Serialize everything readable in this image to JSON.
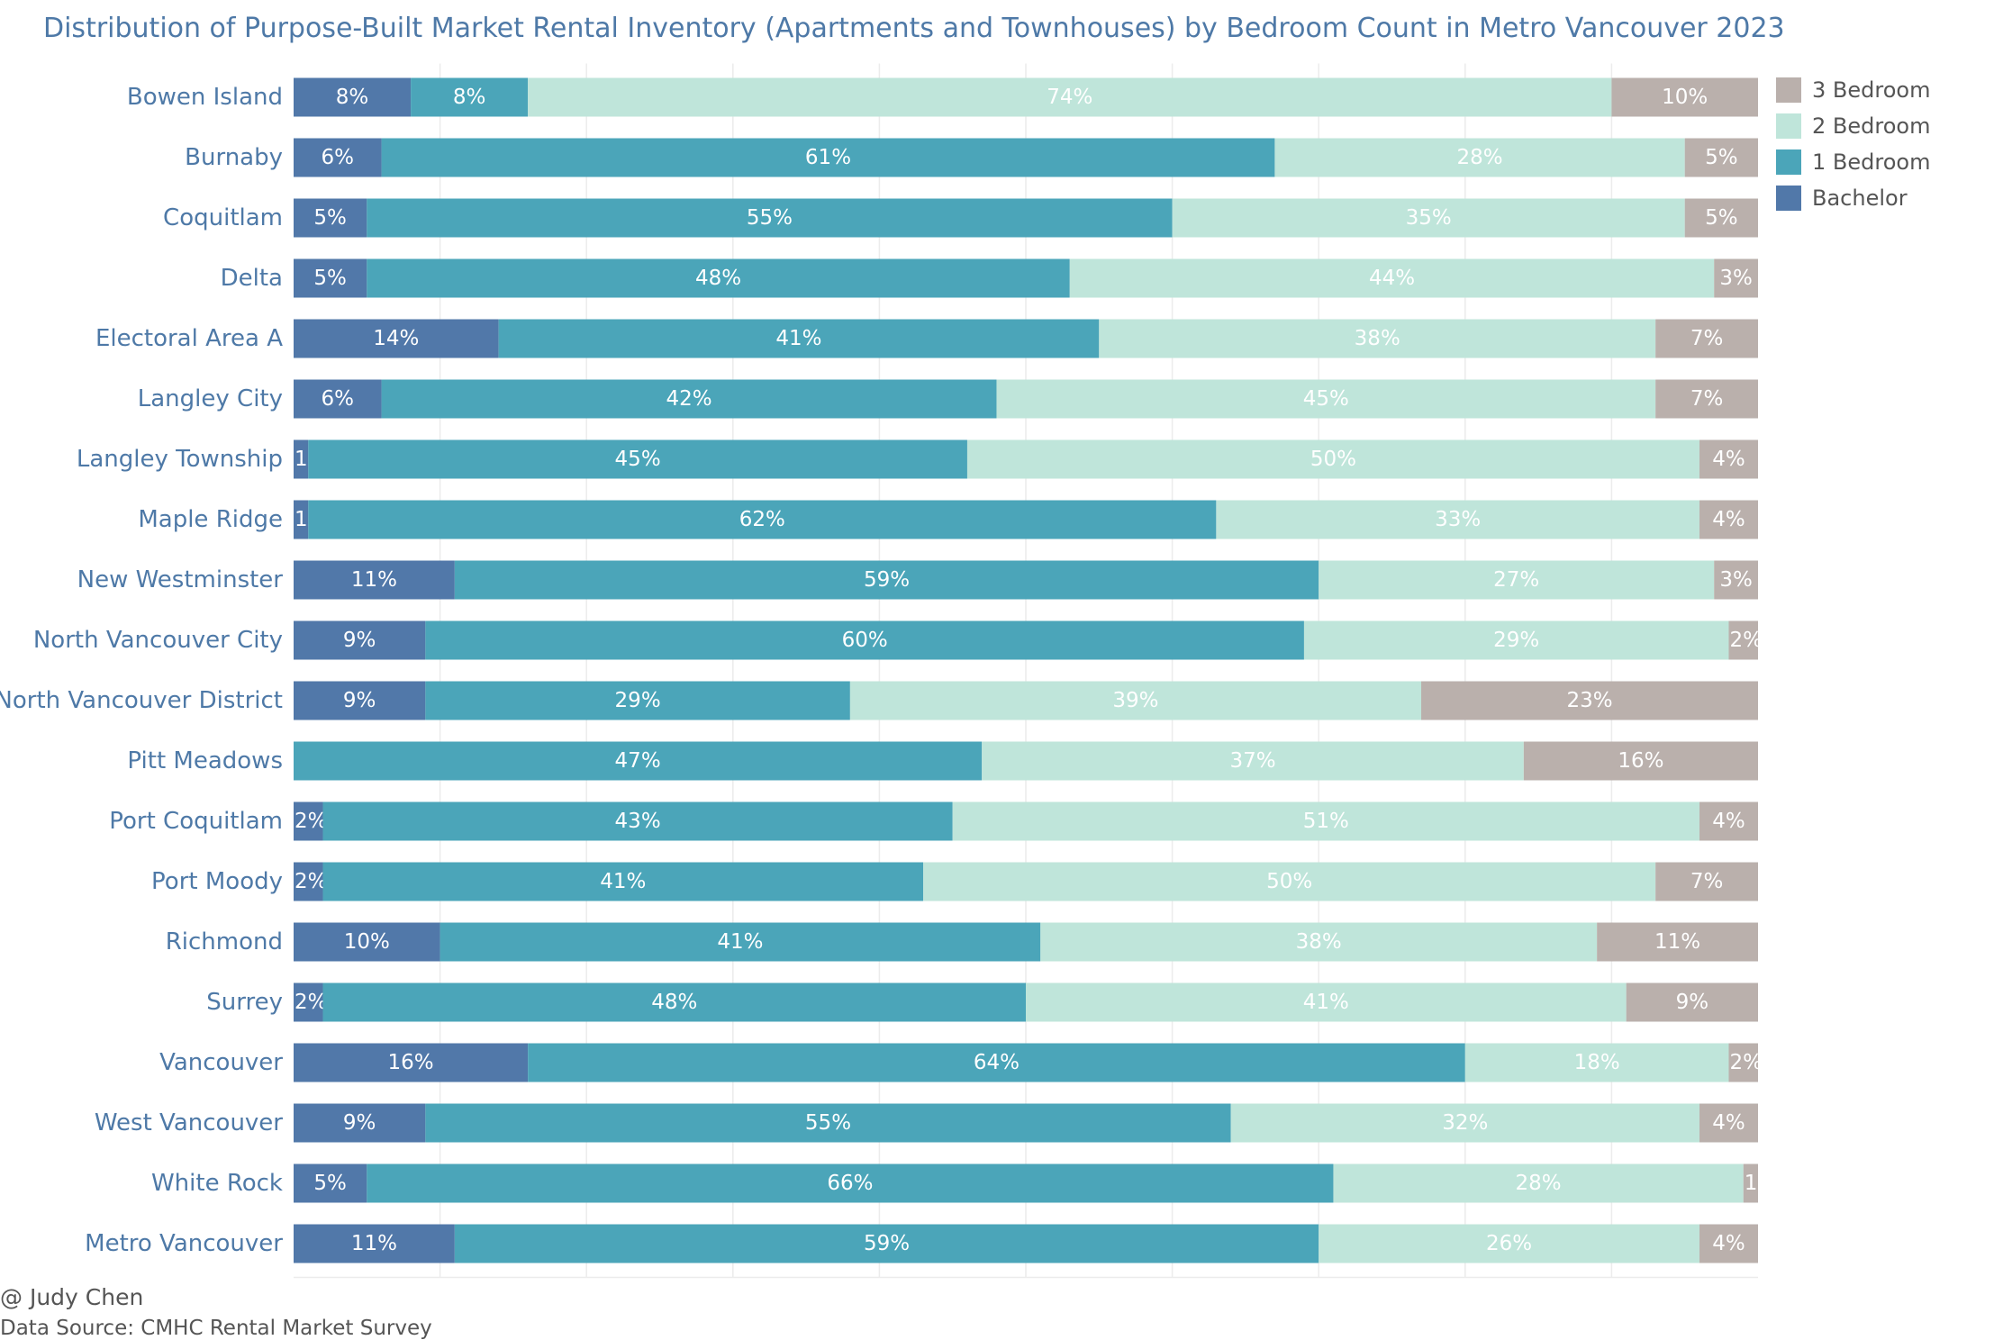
{
  "chart_data": {
    "type": "bar",
    "orientation": "horizontal",
    "stacked": true,
    "normalized_to": 100,
    "title": "Distribution of Purpose-Built Market Rental Inventory (Apartments and Townhouses) by Bedroom Count in Metro Vancouver 2023",
    "xlabel": "",
    "ylabel": "",
    "xlim": [
      0,
      100
    ],
    "grid": "vertical",
    "legend_position": "top-right",
    "categories": [
      "Bowen Island",
      "Burnaby",
      "Coquitlam",
      "Delta",
      "Electoral Area A",
      "Langley City",
      "Langley Township",
      "Maple Ridge",
      "New Westminster",
      "North Vancouver City",
      "North Vancouver District",
      "Pitt Meadows",
      "Port Coquitlam",
      "Port Moody",
      "Richmond",
      "Surrey",
      "Vancouver",
      "West Vancouver",
      "White Rock",
      "Metro Vancouver"
    ],
    "series": [
      {
        "name": "Bachelor",
        "color": "#5178a9",
        "label_color": "#ffffff",
        "values": [
          8,
          6,
          5,
          5,
          14,
          6,
          1,
          1,
          11,
          9,
          9,
          0,
          2,
          2,
          10,
          2,
          16,
          9,
          5,
          11
        ]
      },
      {
        "name": "1 Bedroom",
        "color": "#4ba5b9",
        "label_color": "#ffffff",
        "values": [
          8,
          61,
          55,
          48,
          41,
          42,
          45,
          62,
          59,
          60,
          29,
          47,
          43,
          41,
          41,
          48,
          64,
          55,
          66,
          59
        ]
      },
      {
        "name": "2 Bedroom",
        "color": "#bfe5da",
        "label_color": "#ffffff",
        "values": [
          74,
          28,
          35,
          44,
          38,
          45,
          50,
          33,
          27,
          29,
          39,
          37,
          51,
          50,
          38,
          41,
          18,
          32,
          28,
          26
        ]
      },
      {
        "name": "3 Bedroom",
        "color": "#bab0ac",
        "label_color": "#ffffff",
        "values": [
          10,
          5,
          5,
          3,
          7,
          7,
          4,
          4,
          3,
          2,
          23,
          16,
          4,
          7,
          11,
          9,
          2,
          4,
          1,
          4
        ]
      }
    ],
    "legend_order": [
      "3 Bedroom",
      "2 Bedroom",
      "1 Bedroom",
      "Bachelor"
    ]
  },
  "credit": "@ Judy Chen",
  "source": "Data Source: CMHC Rental Market Survey"
}
